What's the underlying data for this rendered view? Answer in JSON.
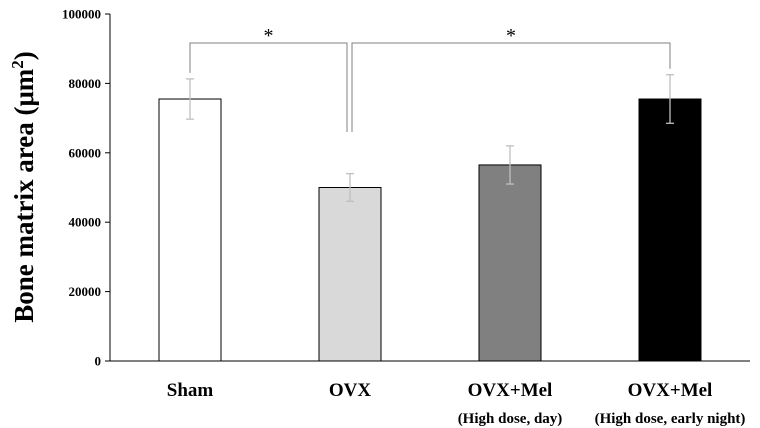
{
  "chart_data": {
    "type": "bar",
    "ylabel": "Bone matrix area (μm²)",
    "ylabel_main": "Bone matrix area (μm",
    "ylabel_sup": "2",
    "ylabel_end": ")",
    "ylim": [
      0,
      100000
    ],
    "yticks": [
      0,
      20000,
      40000,
      60000,
      80000,
      100000
    ],
    "categories": [
      "Sham",
      "OVX",
      "OVX+Mel",
      "OVX+Mel"
    ],
    "subcategories": [
      "",
      "",
      "(High dose, day)",
      "(High dose, early night)"
    ],
    "values": [
      75500,
      50000,
      56500,
      75500
    ],
    "errors": [
      5800,
      4000,
      5500,
      7000
    ],
    "bar_colors": [
      "#ffffff",
      "#d9d9d9",
      "#808080",
      "#000000"
    ],
    "significance": [
      {
        "from": 0,
        "to": 1,
        "label": "*"
      },
      {
        "from": 1,
        "to": 3,
        "label": "*"
      }
    ],
    "grid": false,
    "legend": "none"
  }
}
